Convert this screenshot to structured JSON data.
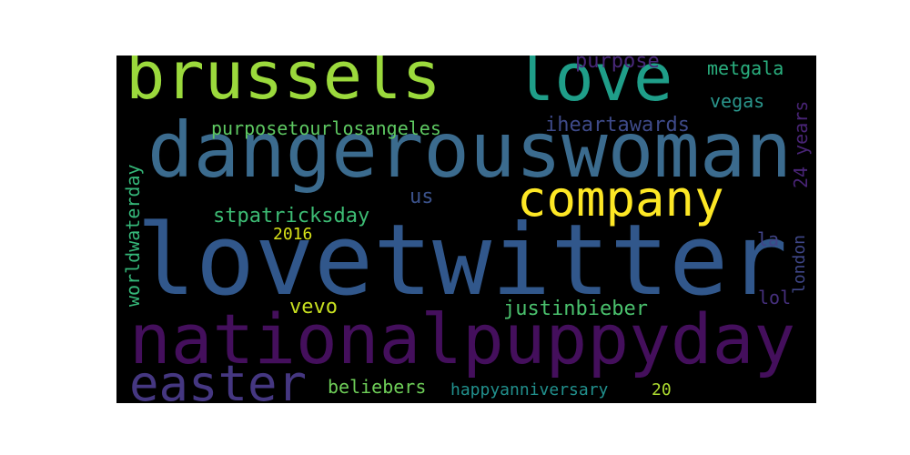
{
  "wordcloud": {
    "background": "#000000",
    "words": [
      {
        "key": "brussels",
        "text": "brussels",
        "color": "#9bd93c"
      },
      {
        "key": "love",
        "text": "love",
        "color": "#1f9e89"
      },
      {
        "key": "dangerouswoman",
        "text": "dangerouswoman",
        "color": "#3b6b8e"
      },
      {
        "key": "company",
        "text": "company",
        "color": "#fde725"
      },
      {
        "key": "lovetwitter",
        "text": "lovetwitter",
        "color": "#31578b"
      },
      {
        "key": "nationalpuppyday",
        "text": "nationalpuppyday",
        "color": "#440f5c"
      },
      {
        "key": "easter",
        "text": "easter",
        "color": "#453781"
      },
      {
        "key": "purposetourlosangeles",
        "text": "purposetourlosangeles",
        "color": "#5ec962"
      },
      {
        "key": "iheartawards",
        "text": "iheartawards",
        "color": "#3e4a89"
      },
      {
        "key": "purpose",
        "text": "purpose",
        "color": "#482878"
      },
      {
        "key": "metgala",
        "text": "metgala",
        "color": "#2ab07f"
      },
      {
        "key": "vegas",
        "text": "vegas",
        "color": "#2a968c"
      },
      {
        "key": "stpatricksday",
        "text": "stpatricksday",
        "color": "#3dbc74"
      },
      {
        "key": "us",
        "text": "us",
        "color": "#3b528b"
      },
      {
        "key": "2016",
        "text": "2016",
        "color": "#d8e219"
      },
      {
        "key": "worldwaterday",
        "text": "worldwaterday",
        "color": "#35b779"
      },
      {
        "key": "24_years",
        "text": "24 years",
        "color": "#482475"
      },
      {
        "key": "london",
        "text": "london",
        "color": "#3f4788"
      },
      {
        "key": "la",
        "text": "la",
        "color": "#414487"
      },
      {
        "key": "lol",
        "text": "lol",
        "color": "#46307e"
      },
      {
        "key": "vevo",
        "text": "vevo",
        "color": "#c8e020"
      },
      {
        "key": "justinbieber",
        "text": "justinbieber",
        "color": "#4ac16d"
      },
      {
        "key": "beliebers",
        "text": "beliebers",
        "color": "#6ece58"
      },
      {
        "key": "happyanniversary",
        "text": "happyanniversary",
        "color": "#21908d"
      },
      {
        "key": "20",
        "text": "20",
        "color": "#addc30"
      }
    ]
  }
}
